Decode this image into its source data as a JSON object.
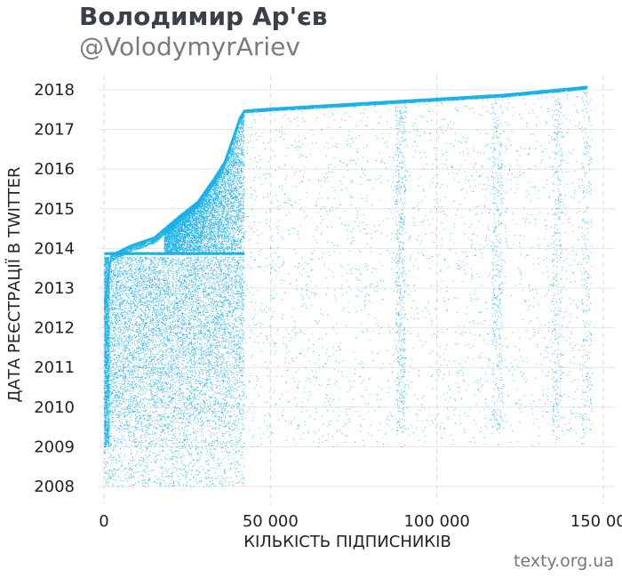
{
  "header": {
    "title": "Володимир Ар'єв",
    "subtitle": "@VolodymyrAriev"
  },
  "footer": {
    "credit": "texty.org.ua"
  },
  "chart_data": {
    "type": "scatter",
    "xlabel": "КІЛЬКІСТЬ ПІДПИСНИКІВ",
    "ylabel": "ДАТА РЕЄСТРАЦІЇ В TWITTER",
    "xlim": [
      -3000,
      155000
    ],
    "ylim": [
      2007.6,
      2018.3
    ],
    "x_ticks": [
      {
        "value": 0,
        "label": "0"
      },
      {
        "value": 50000,
        "label": "50 000"
      },
      {
        "value": 100000,
        "label": "100 000"
      },
      {
        "value": 150000,
        "label": "150 000"
      }
    ],
    "y_ticks": [
      {
        "value": 2008,
        "label": "2008"
      },
      {
        "value": 2009,
        "label": "2009"
      },
      {
        "value": 2010,
        "label": "2010"
      },
      {
        "value": 2011,
        "label": "2011"
      },
      {
        "value": 2012,
        "label": "2012"
      },
      {
        "value": 2013,
        "label": "2013"
      },
      {
        "value": 2014,
        "label": "2014"
      },
      {
        "value": 2015,
        "label": "2015"
      },
      {
        "value": 2016,
        "label": "2016"
      },
      {
        "value": 2017,
        "label": "2017"
      },
      {
        "value": 2018,
        "label": "2018"
      }
    ],
    "grid": true,
    "point_color": "#1ab0e8",
    "approx_point_count": 60000,
    "frontier": {
      "description": "upper edge of the point cloud (approx.)",
      "x": [
        0,
        500,
        2000,
        8000,
        15000,
        22000,
        28000,
        33000,
        36000,
        38500,
        40500,
        42000,
        50000,
        80000,
        100000,
        120000,
        145000
      ],
      "y": [
        2012.8,
        2013.0,
        2013.85,
        2014.1,
        2014.3,
        2014.8,
        2015.2,
        2015.8,
        2016.2,
        2016.8,
        2017.3,
        2017.5,
        2017.55,
        2017.7,
        2017.8,
        2017.9,
        2018.1
      ]
    }
  }
}
